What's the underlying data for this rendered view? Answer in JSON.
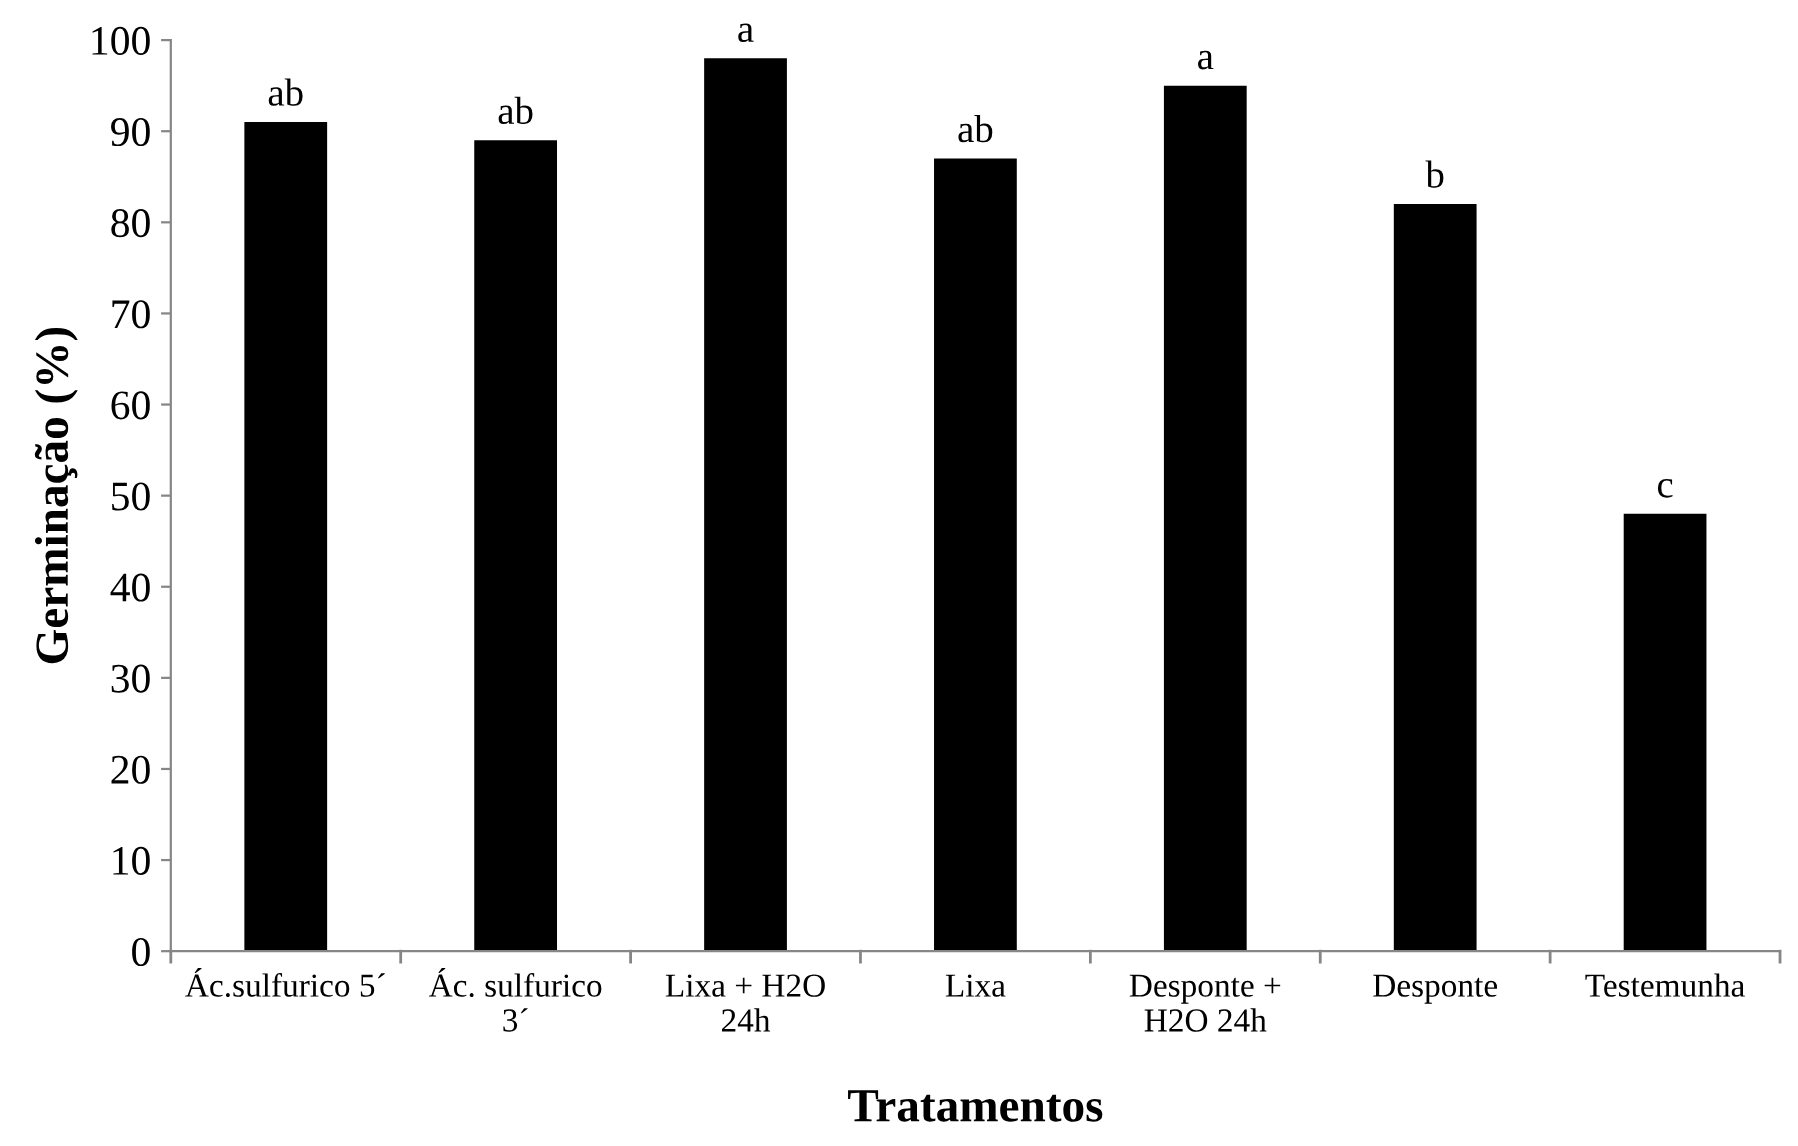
{
  "chart_data": {
    "type": "bar",
    "xlabel": "Tratamentos",
    "ylabel": "Germinação (%)",
    "categories": [
      "Ác.sulfurico 5´",
      "Ác. sulfurico\n3´",
      "Lixa + H2O\n24h",
      "Lixa",
      "Desponte +\nH2O 24h",
      "Desponte",
      "Testemunha"
    ],
    "values": [
      91,
      89,
      98,
      87,
      95,
      82,
      48
    ],
    "value_labels": [
      "ab",
      "ab",
      "a",
      "ab",
      "a",
      "b",
      "c"
    ],
    "color": "#000000",
    "ylim": [
      0,
      100
    ],
    "yticks": [
      0,
      10,
      20,
      30,
      40,
      50,
      60,
      70,
      80,
      90,
      100
    ],
    "grid": false,
    "legend": false
  }
}
